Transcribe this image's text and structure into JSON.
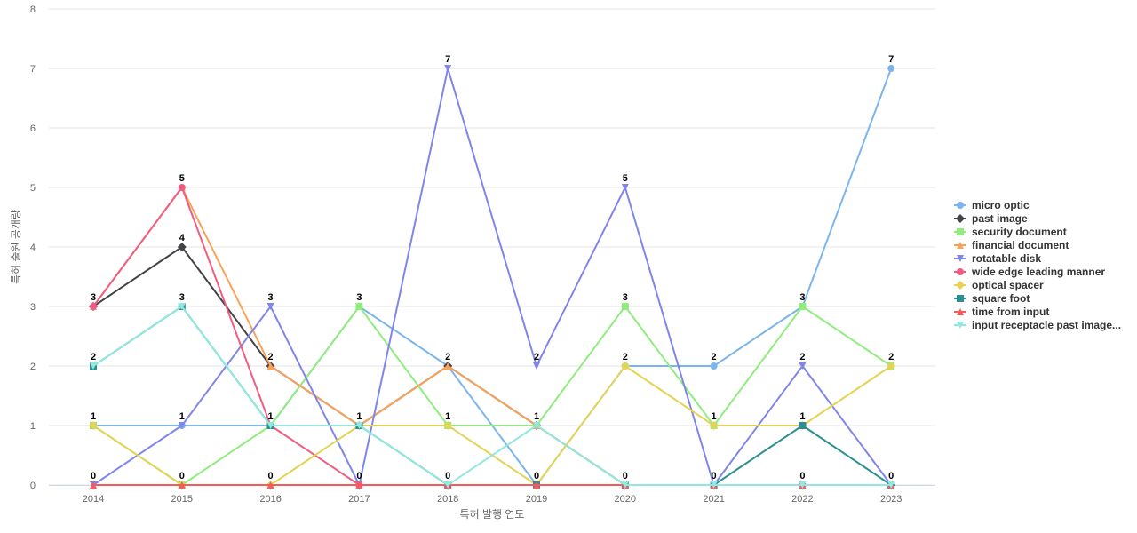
{
  "chart_data": {
    "type": "line",
    "title": "",
    "xlabel": "특허 발행 연도",
    "ylabel": "특허 출원 공개량",
    "categories": [
      "2014",
      "2015",
      "2016",
      "2017",
      "2018",
      "2019",
      "2020",
      "2021",
      "2022",
      "2023"
    ],
    "ylim": [
      0,
      8
    ],
    "yticks": [
      0,
      1,
      2,
      3,
      4,
      5,
      6,
      7,
      8
    ],
    "grid": true,
    "legend_position": "right",
    "series": [
      {
        "name": "micro optic",
        "color": "#7cb5ec",
        "marker": "circle",
        "values": [
          1,
          1,
          1,
          3,
          2,
          0,
          2,
          2,
          3,
          7
        ]
      },
      {
        "name": "past image",
        "color": "#434348",
        "marker": "diamond",
        "values": [
          3,
          4,
          2,
          1,
          2,
          1,
          0,
          0,
          0,
          0
        ]
      },
      {
        "name": "security document",
        "color": "#90ed7d",
        "marker": "square",
        "values": [
          1,
          0,
          1,
          3,
          1,
          1,
          3,
          1,
          3,
          2
        ]
      },
      {
        "name": "financial document",
        "color": "#f7a35c",
        "marker": "triangle",
        "values": [
          3,
          5,
          2,
          1,
          2,
          1,
          0,
          0,
          0,
          0
        ]
      },
      {
        "name": "rotatable disk",
        "color": "#8085e9",
        "marker": "triangle-down",
        "values": [
          0,
          1,
          3,
          0,
          7,
          2,
          5,
          0,
          2,
          0
        ]
      },
      {
        "name": "wide edge leading manner",
        "color": "#f15c80",
        "marker": "circle",
        "values": [
          3,
          5,
          1,
          0,
          0,
          0,
          0,
          0,
          0,
          0
        ]
      },
      {
        "name": "optical spacer",
        "color": "#e4d354",
        "marker": "diamond",
        "values": [
          1,
          0,
          0,
          1,
          1,
          0,
          2,
          1,
          1,
          2
        ]
      },
      {
        "name": "square foot",
        "color": "#2b908f",
        "marker": "square",
        "values": [
          2,
          3,
          1,
          1,
          0,
          0,
          0,
          0,
          1,
          0
        ]
      },
      {
        "name": "time from input",
        "color": "#f45b5b",
        "marker": "triangle",
        "values": [
          0,
          0,
          0,
          0,
          0,
          0,
          0,
          0,
          0,
          0
        ]
      },
      {
        "name": "input receptacle past image...",
        "color": "#91e8e1",
        "marker": "triangle-down",
        "values": [
          2,
          3,
          1,
          1,
          0,
          1,
          0,
          0,
          0,
          0
        ]
      }
    ],
    "data_labels": [
      {
        "x": "2014",
        "y": 3,
        "text": "3"
      },
      {
        "x": "2014",
        "y": 2,
        "text": "2"
      },
      {
        "x": "2014",
        "y": 1,
        "text": "1"
      },
      {
        "x": "2014",
        "y": 0,
        "text": "0"
      },
      {
        "x": "2015",
        "y": 5,
        "text": "5"
      },
      {
        "x": "2015",
        "y": 4,
        "text": "4"
      },
      {
        "x": "2015",
        "y": 3,
        "text": "3"
      },
      {
        "x": "2015",
        "y": 1,
        "text": "1"
      },
      {
        "x": "2015",
        "y": 0,
        "text": "0"
      },
      {
        "x": "2016",
        "y": 3,
        "text": "3"
      },
      {
        "x": "2016",
        "y": 2,
        "text": "2"
      },
      {
        "x": "2016",
        "y": 1,
        "text": "1"
      },
      {
        "x": "2016",
        "y": 0,
        "text": "0"
      },
      {
        "x": "2017",
        "y": 3,
        "text": "3"
      },
      {
        "x": "2017",
        "y": 1,
        "text": "1"
      },
      {
        "x": "2017",
        "y": 0,
        "text": "0"
      },
      {
        "x": "2018",
        "y": 7,
        "text": "7"
      },
      {
        "x": "2018",
        "y": 2,
        "text": "2"
      },
      {
        "x": "2018",
        "y": 1,
        "text": "1"
      },
      {
        "x": "2018",
        "y": 0,
        "text": "0"
      },
      {
        "x": "2019",
        "y": 2,
        "text": "2"
      },
      {
        "x": "2019",
        "y": 1,
        "text": "1"
      },
      {
        "x": "2019",
        "y": 0,
        "text": "0"
      },
      {
        "x": "2020",
        "y": 5,
        "text": "5"
      },
      {
        "x": "2020",
        "y": 3,
        "text": "3"
      },
      {
        "x": "2020",
        "y": 2,
        "text": "2"
      },
      {
        "x": "2020",
        "y": 0,
        "text": "0"
      },
      {
        "x": "2021",
        "y": 2,
        "text": "2"
      },
      {
        "x": "2021",
        "y": 1,
        "text": "1"
      },
      {
        "x": "2021",
        "y": 0,
        "text": "0"
      },
      {
        "x": "2022",
        "y": 3,
        "text": "3"
      },
      {
        "x": "2022",
        "y": 2,
        "text": "2"
      },
      {
        "x": "2022",
        "y": 1,
        "text": "1"
      },
      {
        "x": "2022",
        "y": 0,
        "text": "0"
      },
      {
        "x": "2023",
        "y": 7,
        "text": "7"
      },
      {
        "x": "2023",
        "y": 2,
        "text": "2"
      },
      {
        "x": "2023",
        "y": 0,
        "text": "0"
      }
    ]
  }
}
